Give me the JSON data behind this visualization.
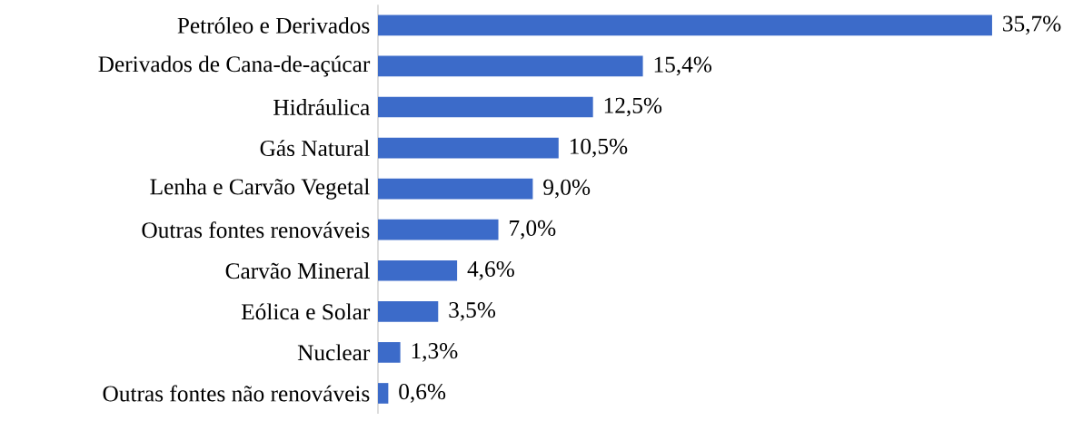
{
  "chart_data": {
    "type": "bar",
    "orientation": "horizontal",
    "categories": [
      "Petróleo e Derivados",
      "Derivados de Cana-de-açúcar",
      "Hidráulica",
      "Gás Natural",
      "Lenha e Carvão Vegetal",
      "Outras fontes renováveis",
      "Carvão Mineral",
      "Eólica e Solar",
      "Nuclear",
      "Outras fontes não renováveis"
    ],
    "values": [
      35.7,
      15.4,
      12.5,
      10.5,
      9.0,
      7.0,
      4.6,
      3.5,
      1.3,
      0.6
    ],
    "value_labels": [
      "35,7%",
      "15,4%",
      "12,5%",
      "10,5%",
      "9,0%",
      "7,0%",
      "4,6%",
      "3,5%",
      "1,3%",
      "0,6%"
    ],
    "color": "#3c6bc9"
  }
}
